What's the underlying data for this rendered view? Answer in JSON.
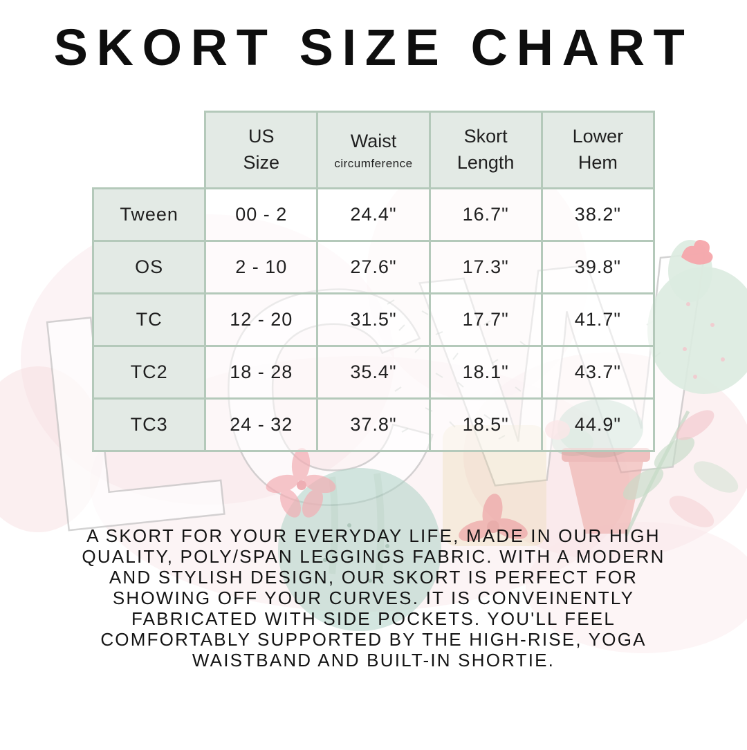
{
  "chart_data": {
    "type": "table",
    "title": "SKORT SIZE CHART",
    "columns": [
      {
        "label": ""
      },
      {
        "label": "US\nSize"
      },
      {
        "label": "Waist",
        "sublabel": "circumference"
      },
      {
        "label": "Skort\nLength"
      },
      {
        "label": "Lower\nHem"
      }
    ],
    "rows": [
      [
        "Tween",
        "00 - 2",
        "24.4\"",
        "16.7\"",
        "38.2\""
      ],
      [
        "OS",
        "2 - 10",
        "27.6\"",
        "17.3\"",
        "39.8\""
      ],
      [
        "TC",
        "12 - 20",
        "31.5\"",
        "17.7\"",
        "41.7\""
      ],
      [
        "TC2",
        "18 - 28",
        "35.4\"",
        "18.1\"",
        "43.7\""
      ],
      [
        "TC3",
        "24 - 32",
        "37.8\"",
        "18.5\"",
        "44.9\""
      ]
    ]
  },
  "description": {
    "lines": [
      "A SKORT FOR YOUR EVERYDAY LIFE, MADE IN OUR HIGH",
      "QUALITY, POLY/SPAN LEGGINGS FABRIC. WITH A MODERN",
      "AND STYLISH DESIGN, OUR SKORT IS PERFECT FOR",
      "SHOWING OFF YOUR CURVES. IT IS CONVEINENTLY",
      "FABRICATED WITH SIDE POCKETS. YOU'LL FEEL",
      "COMFORTABLY SUPPORTED BY THE HIGH-RISE, YOGA",
      "WAISTBAND AND BUILT-IN SHORTIE."
    ]
  },
  "watermark": {
    "text": "LCW"
  },
  "colors": {
    "table_border": "#b4c9ba",
    "cell_mint": "#e3eae5",
    "accent_pink": "#f3aeb4",
    "watermelon_teal": "#aed2c6",
    "cactus_mint": "#dcebe0",
    "text": "#141414"
  }
}
